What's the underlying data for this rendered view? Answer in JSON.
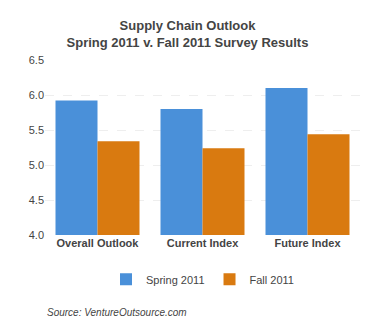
{
  "chart_data": {
    "type": "bar",
    "title": "Supply Chain Outlook",
    "subtitle": "Spring 2011 v. Fall 2011 Survey Results",
    "categories": [
      "Overall Outlook",
      "Current Index",
      "Future Index"
    ],
    "series": [
      {
        "name": "Spring 2011",
        "color": "#4a90d9",
        "values": [
          5.92,
          5.8,
          6.1
        ]
      },
      {
        "name": "Fall 2011",
        "color": "#d97a10",
        "values": [
          5.34,
          5.24,
          5.44
        ]
      }
    ],
    "ylim": [
      4.0,
      6.5
    ],
    "yticks": [
      {
        "value": 4.0,
        "label": "4.0"
      },
      4.5,
      {
        "value": 5.0,
        "label": "5.0"
      },
      5.5,
      {
        "value": 6.0,
        "label": "6.0"
      },
      6.5
    ],
    "grid": true,
    "legend": "bottom",
    "annotations": [
      "Source: VentureOutsource.com"
    ]
  }
}
